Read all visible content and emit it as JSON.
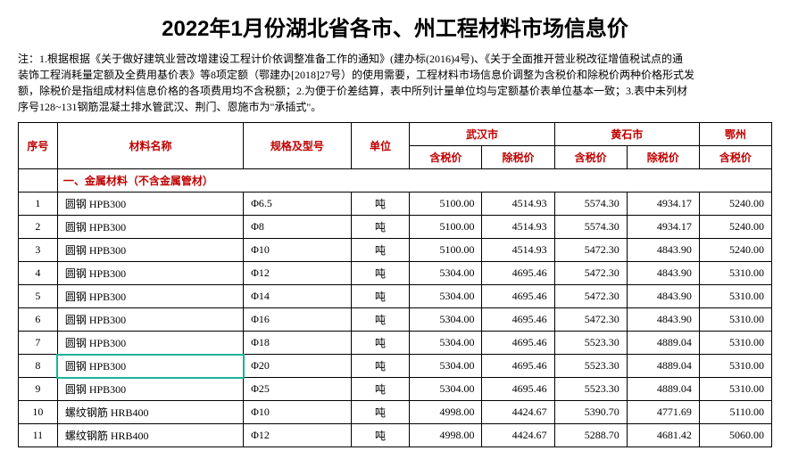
{
  "title": "2022年1月份湖北省各市、州工程材料市场信息价",
  "note": "注：1.根据根据《关于做好建筑业营改增建设工程计价依调整准备工作的通知》(建办标(2016)4号)、《关于全面推开营业税改征增值税试点的通\n装饰工程消耗量定额及全费用基价表》等8项定额（鄂建办[2018]27号）的使用需要，工程材料市场信息价调整为含税价和除税价两种价格形式发\n额，除税价是指组成材料信息价格的各项费用均不含税额；2.为便于价差结算，表中所列计量单位均与定额基价表单位基本一致；3.表中未列材\n序号128~131钢筋混凝土排水管武汉、荆门、恩施市为\"承插式\"。",
  "header": {
    "seq": "序号",
    "name": "材料名称",
    "spec": "规格及型号",
    "unit": "单位",
    "cities": [
      "武汉市",
      "黄石市",
      "鄂州"
    ],
    "incl": "含税价",
    "excl": "除税价"
  },
  "section": "一、金属材料（不含金属管材）",
  "rows": [
    {
      "seq": "1",
      "name": "圆钢 HPB300",
      "spec": "Φ6.5",
      "unit": "吨",
      "wh_i": "5100.00",
      "wh_e": "4514.93",
      "hs_i": "5574.30",
      "hs_e": "4934.17",
      "ez_i": "5240.00",
      "hl": false
    },
    {
      "seq": "2",
      "name": "圆钢 HPB300",
      "spec": "Φ8",
      "unit": "吨",
      "wh_i": "5100.00",
      "wh_e": "4514.93",
      "hs_i": "5574.30",
      "hs_e": "4934.17",
      "ez_i": "5240.00",
      "hl": false
    },
    {
      "seq": "3",
      "name": "圆钢 HPB300",
      "spec": "Φ10",
      "unit": "吨",
      "wh_i": "5100.00",
      "wh_e": "4514.93",
      "hs_i": "5472.30",
      "hs_e": "4843.90",
      "ez_i": "5240.00",
      "hl": false
    },
    {
      "seq": "4",
      "name": "圆钢 HPB300",
      "spec": "Φ12",
      "unit": "吨",
      "wh_i": "5304.00",
      "wh_e": "4695.46",
      "hs_i": "5472.30",
      "hs_e": "4843.90",
      "ez_i": "5310.00",
      "hl": false
    },
    {
      "seq": "5",
      "name": "圆钢 HPB300",
      "spec": "Φ14",
      "unit": "吨",
      "wh_i": "5304.00",
      "wh_e": "4695.46",
      "hs_i": "5472.30",
      "hs_e": "4843.90",
      "ez_i": "5310.00",
      "hl": false
    },
    {
      "seq": "6",
      "name": "圆钢 HPB300",
      "spec": "Φ16",
      "unit": "吨",
      "wh_i": "5304.00",
      "wh_e": "4695.46",
      "hs_i": "5472.30",
      "hs_e": "4843.90",
      "ez_i": "5310.00",
      "hl": false
    },
    {
      "seq": "7",
      "name": "圆钢 HPB300",
      "spec": "Φ18",
      "unit": "吨",
      "wh_i": "5304.00",
      "wh_e": "4695.46",
      "hs_i": "5523.30",
      "hs_e": "4889.04",
      "ez_i": "5310.00",
      "hl": false
    },
    {
      "seq": "8",
      "name": "圆钢 HPB300",
      "spec": "Φ20",
      "unit": "吨",
      "wh_i": "5304.00",
      "wh_e": "4695.46",
      "hs_i": "5523.30",
      "hs_e": "4889.04",
      "ez_i": "5310.00",
      "hl": true
    },
    {
      "seq": "9",
      "name": "圆钢 HPB300",
      "spec": "Φ25",
      "unit": "吨",
      "wh_i": "5304.00",
      "wh_e": "4695.46",
      "hs_i": "5523.30",
      "hs_e": "4889.04",
      "ez_i": "5310.00",
      "hl": false
    },
    {
      "seq": "10",
      "name": "螺纹钢筋 HRB400",
      "spec": "Φ10",
      "unit": "吨",
      "wh_i": "4998.00",
      "wh_e": "4424.67",
      "hs_i": "5390.70",
      "hs_e": "4771.69",
      "ez_i": "5110.00",
      "hl": false
    },
    {
      "seq": "11",
      "name": "螺纹钢筋 HRB400",
      "spec": "Φ12",
      "unit": "吨",
      "wh_i": "4998.00",
      "wh_e": "4424.67",
      "hs_i": "5288.70",
      "hs_e": "4681.42",
      "ez_i": "5060.00",
      "hl": false
    }
  ]
}
